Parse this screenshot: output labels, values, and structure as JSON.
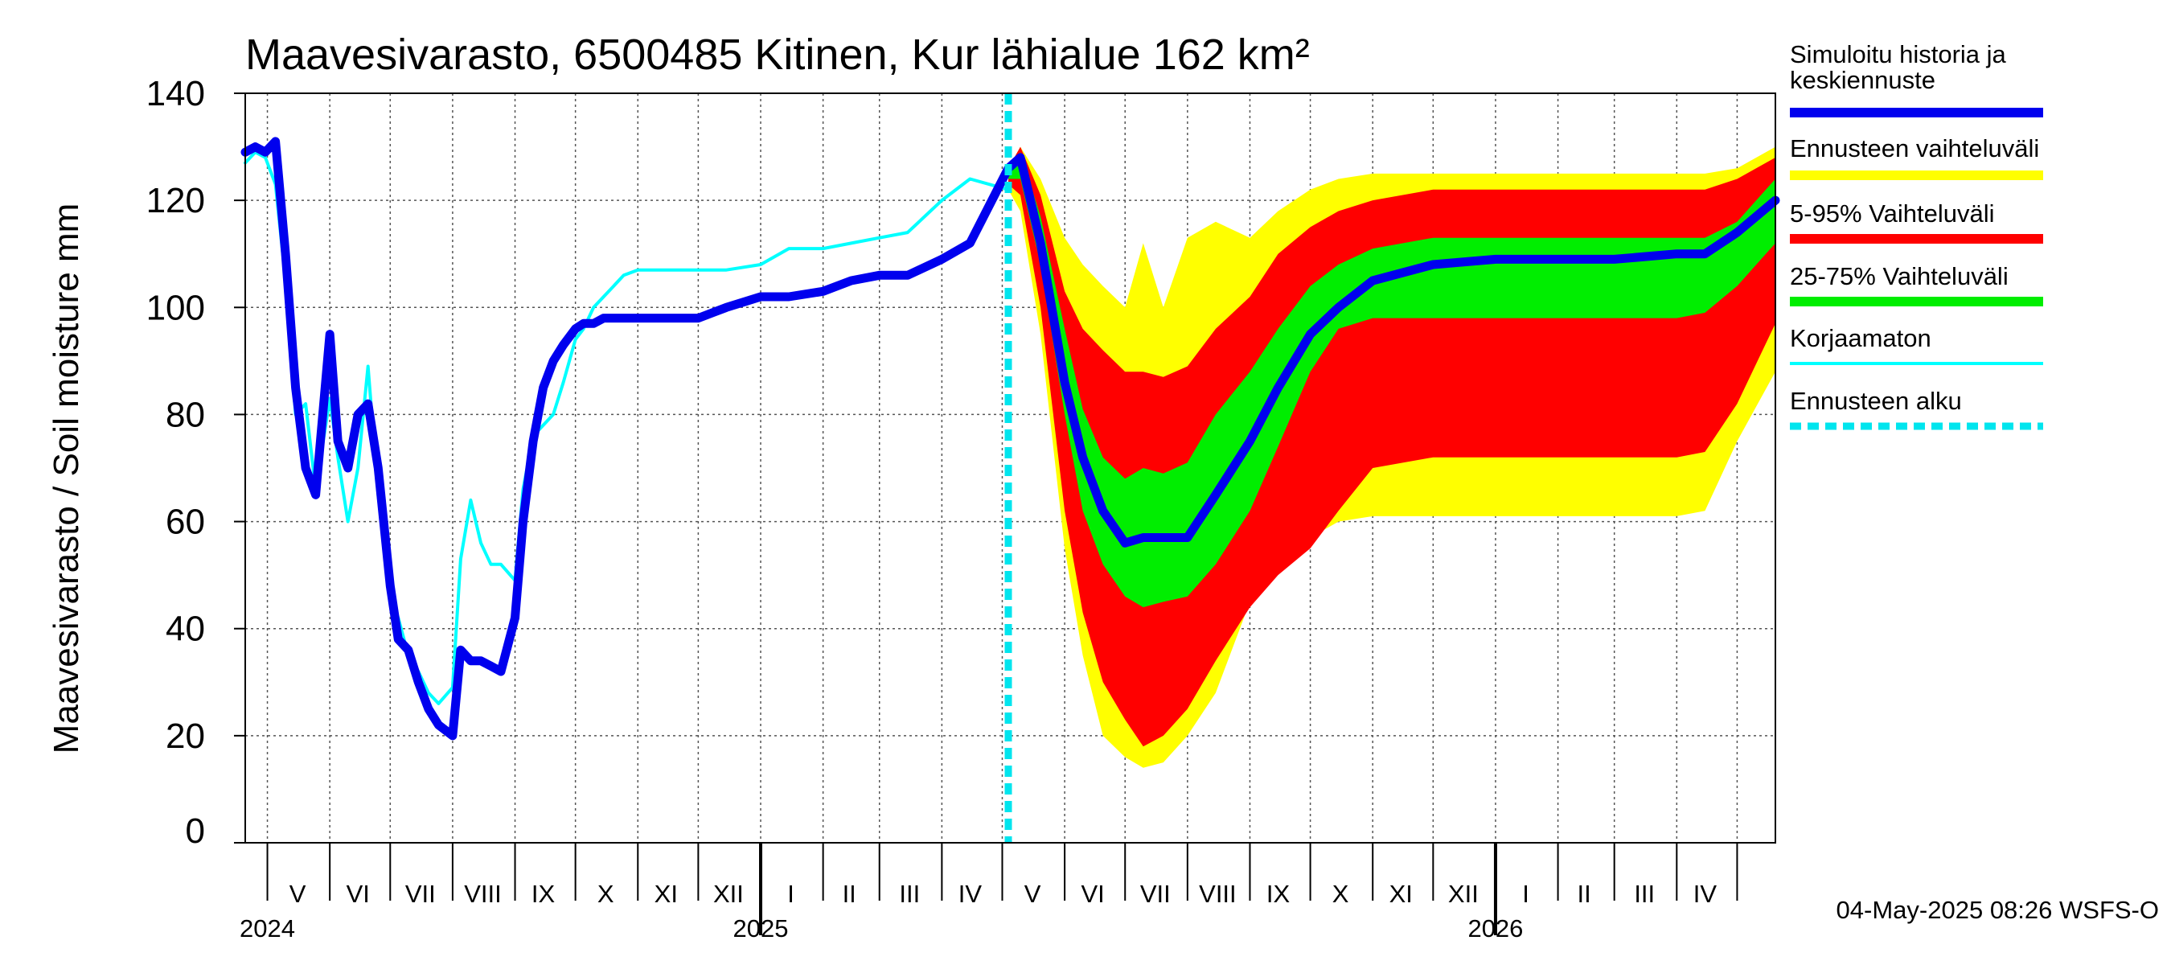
{
  "chart_data": {
    "type": "area",
    "title": "Maavesivarasto, 6500485 Kitinen, Kur lähialue 162 km²",
    "ylabel": "Maavesivarasto / Soil moisture   mm",
    "ylim": [
      0,
      140
    ],
    "yticks": [
      0,
      20,
      40,
      60,
      80,
      100,
      120,
      140
    ],
    "xlim": [
      "2024-04-20",
      "2026-05-20"
    ],
    "grid": true,
    "forecast_start": "2025-05-04",
    "months": [
      {
        "label": "V",
        "date": "2024-05-16"
      },
      {
        "label": "VI",
        "date": "2024-06-15"
      },
      {
        "label": "VII",
        "date": "2024-07-16"
      },
      {
        "label": "VIII",
        "date": "2024-08-16"
      },
      {
        "label": "IX",
        "date": "2024-09-15"
      },
      {
        "label": "X",
        "date": "2024-10-16"
      },
      {
        "label": "XI",
        "date": "2024-11-15"
      },
      {
        "label": "XII",
        "date": "2024-12-16"
      },
      {
        "label": "I",
        "date": "2025-01-16"
      },
      {
        "label": "II",
        "date": "2025-02-14"
      },
      {
        "label": "III",
        "date": "2025-03-16"
      },
      {
        "label": "IV",
        "date": "2025-04-15"
      },
      {
        "label": "V",
        "date": "2025-05-16"
      },
      {
        "label": "VI",
        "date": "2025-06-15"
      },
      {
        "label": "VII",
        "date": "2025-07-16"
      },
      {
        "label": "VIII",
        "date": "2025-08-16"
      },
      {
        "label": "IX",
        "date": "2025-09-15"
      },
      {
        "label": "X",
        "date": "2025-10-16"
      },
      {
        "label": "XI",
        "date": "2025-11-15"
      },
      {
        "label": "XII",
        "date": "2025-12-16"
      },
      {
        "label": "I",
        "date": "2026-01-16"
      },
      {
        "label": "II",
        "date": "2026-02-14"
      },
      {
        "label": "III",
        "date": "2026-03-16"
      },
      {
        "label": "IV",
        "date": "2026-04-15"
      }
    ],
    "years": [
      {
        "label": "2024",
        "date": "2024-05-01"
      },
      {
        "label": "2025",
        "date": "2025-01-01"
      },
      {
        "label": "2026",
        "date": "2026-01-01"
      }
    ],
    "bands": [
      {
        "name": "Ennusteen vaihteluväli",
        "color": "#ffff00",
        "x": [
          "2025-05-04",
          "2025-05-10",
          "2025-05-20",
          "2025-06-01",
          "2025-06-10",
          "2025-06-20",
          "2025-07-01",
          "2025-07-10",
          "2025-07-20",
          "2025-08-01",
          "2025-08-15",
          "2025-09-01",
          "2025-09-15",
          "2025-10-01",
          "2025-10-15",
          "2025-11-01",
          "2025-12-01",
          "2026-01-01",
          "2026-02-01",
          "2026-03-01",
          "2026-04-01",
          "2026-04-15",
          "2026-05-01",
          "2026-05-20"
        ],
        "lower": [
          122,
          118,
          95,
          55,
          35,
          20,
          16,
          14,
          15,
          20,
          28,
          45,
          52,
          57,
          60,
          61,
          61,
          61,
          61,
          61,
          61,
          62,
          75,
          88
        ],
        "upper": [
          126,
          130,
          124,
          113,
          108,
          104,
          100,
          112,
          100,
          113,
          116,
          113,
          118,
          122,
          124,
          125,
          125,
          125,
          125,
          125,
          125,
          125,
          126,
          130
        ]
      },
      {
        "name": "5-95% Vaihteluväli",
        "color": "#ff0000",
        "x": [
          "2025-05-04",
          "2025-05-10",
          "2025-05-20",
          "2025-06-01",
          "2025-06-10",
          "2025-06-20",
          "2025-07-01",
          "2025-07-10",
          "2025-07-20",
          "2025-08-01",
          "2025-08-15",
          "2025-09-01",
          "2025-09-15",
          "2025-10-01",
          "2025-10-15",
          "2025-11-01",
          "2025-12-01",
          "2026-01-01",
          "2026-02-01",
          "2026-03-01",
          "2026-04-01",
          "2026-04-15",
          "2026-05-01",
          "2026-05-20"
        ],
        "lower": [
          123,
          121,
          100,
          62,
          43,
          30,
          23,
          18,
          20,
          25,
          34,
          44,
          50,
          55,
          62,
          70,
          72,
          72,
          72,
          72,
          72,
          73,
          82,
          97
        ],
        "upper": [
          126,
          130,
          121,
          103,
          96,
          92,
          88,
          88,
          87,
          89,
          96,
          102,
          110,
          115,
          118,
          120,
          122,
          122,
          122,
          122,
          122,
          122,
          124,
          128
        ]
      },
      {
        "name": "25-75% Vaihteluväli",
        "color": "#00ee00",
        "x": [
          "2025-05-04",
          "2025-05-10",
          "2025-05-20",
          "2025-06-01",
          "2025-06-10",
          "2025-06-20",
          "2025-07-01",
          "2025-07-10",
          "2025-07-20",
          "2025-08-01",
          "2025-08-15",
          "2025-09-01",
          "2025-09-15",
          "2025-10-01",
          "2025-10-15",
          "2025-11-01",
          "2025-12-01",
          "2026-01-01",
          "2026-02-01",
          "2026-03-01",
          "2026-04-01",
          "2026-04-15",
          "2026-05-01",
          "2026-05-20"
        ],
        "lower": [
          124,
          124,
          108,
          80,
          62,
          52,
          46,
          44,
          45,
          46,
          52,
          62,
          74,
          88,
          96,
          98,
          98,
          98,
          98,
          98,
          98,
          99,
          104,
          112
        ],
        "upper": [
          126,
          129,
          117,
          96,
          81,
          72,
          68,
          70,
          69,
          71,
          80,
          88,
          96,
          104,
          108,
          111,
          113,
          113,
          113,
          113,
          113,
          113,
          116,
          124
        ]
      }
    ],
    "series": [
      {
        "name": "Korjaamaton",
        "color": "#00ffff",
        "width": 4,
        "x": [
          "2024-04-20",
          "2024-04-25",
          "2024-04-30",
          "2024-05-05",
          "2024-05-10",
          "2024-05-15",
          "2024-05-20",
          "2024-05-25",
          "2024-06-01",
          "2024-06-05",
          "2024-06-10",
          "2024-06-15",
          "2024-06-20",
          "2024-06-25",
          "2024-07-01",
          "2024-07-05",
          "2024-07-10",
          "2024-07-15",
          "2024-07-20",
          "2024-07-25",
          "2024-08-01",
          "2024-08-05",
          "2024-08-10",
          "2024-08-15",
          "2024-08-20",
          "2024-08-25",
          "2024-09-01",
          "2024-09-05",
          "2024-09-10",
          "2024-09-15",
          "2024-09-20",
          "2024-09-25",
          "2024-10-01",
          "2024-10-05",
          "2024-10-10",
          "2024-10-15",
          "2024-10-20",
          "2024-10-25",
          "2024-11-01",
          "2024-11-15",
          "2024-12-01",
          "2024-12-15",
          "2025-01-01",
          "2025-01-15",
          "2025-02-01",
          "2025-02-15",
          "2025-03-01",
          "2025-03-15",
          "2025-04-01",
          "2025-04-15",
          "2025-05-04"
        ],
        "y": [
          127,
          129,
          128,
          123,
          105,
          80,
          82,
          66,
          83,
          72,
          60,
          70,
          89,
          65,
          46,
          42,
          35,
          32,
          28,
          26,
          29,
          53,
          64,
          56,
          52,
          52,
          49,
          66,
          76,
          78,
          80,
          86,
          94,
          96,
          100,
          102,
          104,
          106,
          107,
          107,
          107,
          107,
          108,
          111,
          111,
          112,
          113,
          114,
          120,
          124,
          122
        ]
      },
      {
        "name": "Simuloitu historia ja keskiennuste",
        "color": "#0000ee",
        "width": 11,
        "x": [
          "2024-04-20",
          "2024-04-25",
          "2024-04-30",
          "2024-05-05",
          "2024-05-10",
          "2024-05-15",
          "2024-05-20",
          "2024-05-25",
          "2024-06-01",
          "2024-06-05",
          "2024-06-10",
          "2024-06-15",
          "2024-06-20",
          "2024-06-25",
          "2024-07-01",
          "2024-07-05",
          "2024-07-10",
          "2024-07-15",
          "2024-07-20",
          "2024-07-25",
          "2024-08-01",
          "2024-08-05",
          "2024-08-10",
          "2024-08-15",
          "2024-08-20",
          "2024-08-25",
          "2024-09-01",
          "2024-09-05",
          "2024-09-10",
          "2024-09-15",
          "2024-09-20",
          "2024-09-25",
          "2024-10-01",
          "2024-10-05",
          "2024-10-10",
          "2024-10-15",
          "2024-10-20",
          "2024-11-01",
          "2024-11-15",
          "2024-12-01",
          "2024-12-15",
          "2025-01-01",
          "2025-01-15",
          "2025-02-01",
          "2025-02-15",
          "2025-03-01",
          "2025-03-15",
          "2025-04-01",
          "2025-04-15",
          "2025-05-04",
          "2025-05-10",
          "2025-05-20",
          "2025-06-01",
          "2025-06-10",
          "2025-06-20",
          "2025-07-01",
          "2025-07-10",
          "2025-07-20",
          "2025-08-01",
          "2025-08-15",
          "2025-09-01",
          "2025-09-15",
          "2025-10-01",
          "2025-10-15",
          "2025-11-01",
          "2025-12-01",
          "2026-01-01",
          "2026-02-01",
          "2026-03-01",
          "2026-04-01",
          "2026-04-15",
          "2026-05-01",
          "2026-05-20"
        ],
        "y": [
          129,
          130,
          129,
          131,
          110,
          85,
          70,
          65,
          95,
          75,
          70,
          80,
          82,
          70,
          48,
          38,
          36,
          30,
          25,
          22,
          20,
          36,
          34,
          34,
          33,
          32,
          42,
          60,
          75,
          85,
          90,
          93,
          96,
          97,
          97,
          98,
          98,
          98,
          98,
          98,
          100,
          102,
          102,
          103,
          105,
          106,
          106,
          109,
          112,
          126,
          128,
          112,
          86,
          72,
          62,
          56,
          57,
          57,
          57,
          65,
          75,
          85,
          95,
          100,
          105,
          108,
          109,
          109,
          109,
          110,
          110,
          114,
          120
        ]
      }
    ],
    "legend": [
      {
        "label": "Simuloitu historia ja\nkeskiennuste",
        "color": "#0000ee",
        "style": "thick"
      },
      {
        "label": "Ennusteen vaihteluväli",
        "color": "#ffff00",
        "style": "band"
      },
      {
        "label": "5-95% Vaihteluväli",
        "color": "#ff0000",
        "style": "band"
      },
      {
        "label": "25-75% Vaihteluväli",
        "color": "#00ee00",
        "style": "band"
      },
      {
        "label": "Korjaamaton",
        "color": "#00ffff",
        "style": "thin"
      },
      {
        "label": "Ennusteen alku",
        "color": "#00e5ee",
        "style": "dashed"
      }
    ],
    "legend_position": "right",
    "footer": "04-May-2025 08:26 WSFS-O"
  }
}
